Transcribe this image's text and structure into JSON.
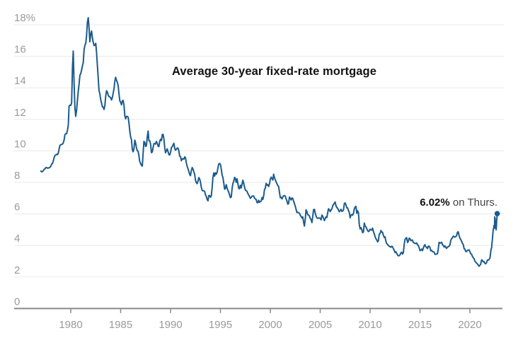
{
  "accent_color": "#1c5b8d",
  "grid_color": "#e8e8e8",
  "axis_color": "#8a8a8a",
  "label_color": "#9a9a9a",
  "title": "Average 30-year fixed-rate mortgage",
  "annotation": {
    "bold": "6.02%",
    "rest": " on Thurs."
  },
  "chart_data": {
    "type": "line",
    "title": "Average 30-year fixed-rate mortgage",
    "unit": "%",
    "grid": true,
    "legend": false,
    "x_axis": {
      "ticks": [
        1980,
        1985,
        1990,
        1995,
        2000,
        2005,
        2010,
        2015,
        2020
      ],
      "range": [
        1977,
        2022.74
      ]
    },
    "y_axis": {
      "ticks": [
        0,
        2,
        4,
        6,
        8,
        10,
        12,
        14,
        16,
        18
      ],
      "tick_labels": [
        "0",
        "2",
        "4",
        "6",
        "8",
        "10",
        "12",
        "14",
        "16",
        "18%"
      ],
      "range": [
        0,
        18
      ]
    },
    "series": [
      {
        "name": "Average 30-year fixed-rate mortgage rate (%)",
        "color": "#1c5b8d",
        "monthly_start_year": 1977,
        "monthly_values": [
          8.72,
          8.67,
          8.69,
          8.75,
          8.83,
          8.86,
          8.94,
          8.94,
          8.9,
          8.92,
          8.92,
          8.96,
          9.02,
          9.16,
          9.2,
          9.36,
          9.57,
          9.71,
          9.74,
          9.79,
          9.76,
          9.86,
          10.11,
          10.35,
          10.39,
          10.41,
          10.43,
          10.5,
          10.69,
          11.04,
          11.09,
          11.09,
          11.3,
          11.64,
          12.83,
          12.9,
          12.88,
          13.04,
          15.28,
          16.33,
          14.26,
          12.71,
          12.19,
          12.56,
          13.2,
          13.79,
          14.21,
          14.79,
          14.9,
          15.13,
          15.4,
          15.58,
          16.4,
          16.7,
          16.83,
          17.29,
          18.16,
          18.45,
          17.82,
          16.92,
          17.4,
          17.6,
          17.16,
          16.89,
          16.68,
          16.7,
          16.82,
          16.27,
          15.43,
          14.61,
          13.83,
          13.62,
          13.25,
          13.04,
          12.8,
          12.78,
          12.63,
          12.87,
          13.43,
          13.81,
          13.73,
          13.54,
          13.44,
          13.42,
          13.37,
          13.23,
          13.39,
          13.65,
          13.94,
          14.42,
          14.67,
          14.47,
          14.35,
          14.13,
          13.64,
          13.18,
          13.08,
          12.92,
          13.17,
          13.2,
          12.91,
          12.22,
          12.03,
          12.19,
          12.19,
          12.14,
          11.78,
          11.26,
          10.88,
          10.71,
          10.08,
          9.94,
          10.14,
          10.68,
          10.51,
          10.2,
          10.01,
          9.97,
          9.7,
          9.31,
          9.2,
          9.08,
          9.04,
          9.83,
          10.6,
          10.54,
          10.28,
          10.33,
          10.89,
          11.26,
          10.65,
          10.64,
          10.43,
          9.89,
          9.93,
          10.2,
          10.46,
          10.46,
          10.43,
          10.6,
          10.48,
          10.3,
          10.27,
          10.61,
          10.73,
          10.65,
          11.03,
          11.05,
          10.77,
          10.2,
          9.88,
          9.99,
          10.13,
          9.95,
          9.77,
          9.74,
          9.9,
          10.2,
          10.27,
          10.37,
          10.48,
          10.16,
          10.04,
          10.1,
          10.18,
          10.17,
          10.01,
          9.67,
          9.64,
          9.37,
          9.5,
          9.49,
          9.47,
          9.62,
          9.58,
          9.24,
          9.01,
          8.86,
          8.71,
          8.5,
          8.43,
          8.76,
          8.94,
          8.85,
          8.67,
          8.51,
          8.13,
          7.98,
          7.92,
          8.09,
          8.31,
          8.22,
          8.02,
          7.68,
          7.5,
          7.47,
          7.47,
          7.42,
          7.21,
          7.11,
          6.92,
          6.83,
          7.16,
          7.17,
          7.06,
          7.15,
          7.68,
          8.32,
          8.6,
          8.4,
          8.61,
          8.51,
          8.64,
          8.93,
          9.17,
          9.2,
          9.15,
          8.83,
          8.46,
          8.32,
          7.96,
          7.57,
          7.61,
          7.86,
          7.64,
          7.48,
          7.38,
          7.2,
          7.03,
          7.08,
          7.62,
          7.93,
          8.07,
          8.32,
          8.25,
          8.0,
          8.23,
          7.92,
          7.62,
          7.6,
          7.82,
          7.65,
          7.9,
          8.14,
          7.94,
          7.69,
          7.5,
          7.48,
          7.43,
          7.29,
          7.21,
          7.1,
          6.99,
          7.04,
          7.13,
          7.14,
          7.14,
          7.0,
          6.95,
          6.92,
          6.72,
          6.71,
          6.87,
          6.74,
          6.79,
          6.81,
          7.04,
          6.92,
          7.15,
          7.55,
          7.63,
          7.94,
          7.82,
          7.85,
          7.74,
          7.91,
          8.21,
          8.33,
          8.24,
          8.15,
          8.52,
          8.29,
          8.15,
          8.03,
          7.91,
          7.8,
          7.75,
          7.38,
          7.03,
          7.05,
          6.95,
          7.08,
          7.15,
          7.16,
          7.13,
          6.95,
          6.82,
          6.62,
          6.66,
          7.07,
          7.0,
          6.89,
          7.01,
          6.99,
          6.81,
          6.65,
          6.49,
          6.29,
          6.09,
          6.11,
          6.07,
          6.05,
          5.92,
          5.84,
          5.75,
          5.81,
          5.48,
          5.23,
          5.63,
          6.26,
          6.15,
          5.95,
          5.93,
          5.88,
          5.71,
          5.64,
          5.45,
          5.83,
          6.27,
          6.29,
          6.06,
          5.87,
          5.75,
          5.72,
          5.73,
          5.75,
          5.71,
          5.63,
          5.93,
          5.86,
          5.72,
          5.58,
          5.7,
          5.82,
          5.77,
          6.07,
          6.33,
          6.27,
          6.15,
          6.25,
          6.32,
          6.51,
          6.6,
          6.68,
          6.76,
          6.52,
          6.4,
          6.36,
          6.24,
          6.14,
          6.22,
          6.29,
          6.16,
          6.18,
          6.26,
          6.66,
          6.7,
          6.57,
          6.38,
          6.38,
          6.21,
          6.1,
          5.76,
          5.92,
          5.97,
          5.92,
          6.04,
          6.32,
          6.43,
          6.48,
          6.04,
          6.2,
          6.09,
          5.33,
          5.05,
          5.13,
          5.0,
          4.81,
          4.86,
          5.42,
          5.22,
          5.19,
          5.06,
          4.95,
          4.88,
          4.93,
          5.03,
          4.99,
          4.97,
          5.1,
          4.89,
          4.74,
          4.56,
          4.43,
          4.35,
          4.23,
          4.3,
          4.71,
          4.76,
          4.95,
          4.84,
          4.84,
          4.64,
          4.51,
          4.55,
          4.27,
          4.11,
          4.07,
          3.99,
          3.96,
          3.92,
          3.89,
          3.95,
          3.91,
          3.8,
          3.68,
          3.55,
          3.6,
          3.5,
          3.38,
          3.35,
          3.35,
          3.41,
          3.53,
          3.57,
          3.45,
          3.54,
          4.07,
          4.37,
          4.46,
          4.49,
          4.19,
          4.26,
          4.46,
          4.43,
          4.3,
          4.34,
          4.34,
          4.19,
          4.16,
          4.13,
          4.12,
          4.16,
          4.04,
          4.0,
          3.86,
          3.67,
          3.71,
          3.77,
          3.67,
          3.84,
          3.98,
          4.05,
          3.91,
          3.89,
          3.8,
          3.94,
          3.96,
          3.87,
          3.66,
          3.69,
          3.61,
          3.6,
          3.57,
          3.44,
          3.44,
          3.46,
          3.47,
          3.77,
          4.2,
          4.15,
          4.17,
          4.2,
          4.05,
          4.01,
          3.9,
          3.97,
          3.88,
          3.81,
          3.9,
          3.92,
          3.95,
          4.03,
          4.33,
          4.44,
          4.47,
          4.59,
          4.57,
          4.53,
          4.55,
          4.63,
          4.83,
          4.87,
          4.64,
          4.46,
          4.37,
          4.27,
          4.14,
          4.07,
          3.8,
          3.77,
          3.62,
          3.61,
          3.69,
          3.7,
          3.72,
          3.62,
          3.47,
          3.45,
          3.31,
          3.23,
          3.16,
          3.02,
          2.94,
          2.89,
          2.83,
          2.77,
          2.68,
          2.74,
          2.81,
          3.08,
          3.06,
          2.96,
          2.98,
          2.87,
          2.84,
          2.9,
          3.07,
          3.07,
          3.1
        ],
        "weekly_2022": [
          [
            2022.02,
            3.22
          ],
          [
            2022.08,
            3.55
          ],
          [
            2022.13,
            3.76
          ],
          [
            2022.18,
            3.85
          ],
          [
            2022.22,
            4.16
          ],
          [
            2022.26,
            4.42
          ],
          [
            2022.3,
            4.72
          ],
          [
            2022.34,
            5.0
          ],
          [
            2022.38,
            5.1
          ],
          [
            2022.42,
            5.27
          ],
          [
            2022.45,
            5.25
          ],
          [
            2022.47,
            5.1
          ],
          [
            2022.49,
            5.81
          ],
          [
            2022.53,
            5.7
          ],
          [
            2022.55,
            5.3
          ],
          [
            2022.58,
            5.54
          ],
          [
            2022.6,
            5.13
          ],
          [
            2022.63,
            4.99
          ],
          [
            2022.66,
            5.22
          ],
          [
            2022.68,
            5.55
          ],
          [
            2022.7,
            5.66
          ],
          [
            2022.72,
            5.89
          ],
          [
            2022.74,
            6.02
          ]
        ],
        "last_point": {
          "x": 2022.74,
          "value": 6.02,
          "label": "6.02% on Thurs."
        }
      }
    ]
  }
}
